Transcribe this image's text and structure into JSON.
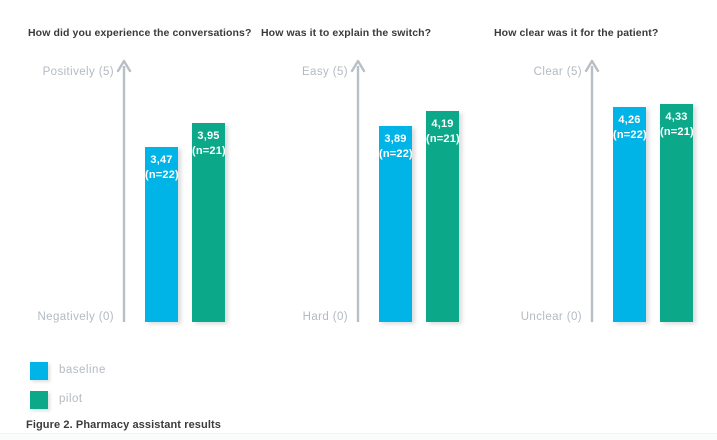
{
  "chart_data": {
    "type": "bar",
    "categories": [
      "How did you experience the conversations?",
      "How was it to explain the switch?",
      "How clear was it for the patient?"
    ],
    "series": [
      {
        "name": "baseline",
        "values": [
          3.47,
          3.89,
          4.26
        ],
        "n": [
          22,
          22,
          22
        ],
        "color": "#00b4e8"
      },
      {
        "name": "pilot",
        "values": [
          3.95,
          4.19,
          4.33
        ],
        "n": [
          21,
          21,
          21
        ],
        "color": "#0ba98a"
      }
    ],
    "ylim": [
      0,
      5
    ],
    "grid": false,
    "legend_position": "bottom-left",
    "caption": "Figure 2. Pharmacy assistant results",
    "panels": [
      {
        "question": "How did you experience the conversations?",
        "axis_top_label": "Positively (5)",
        "axis_bottom_label": "Negatively (0)",
        "bars": [
          {
            "series": "baseline",
            "value": 3.47,
            "value_label": "3,47",
            "n_label": "(n=22)"
          },
          {
            "series": "pilot",
            "value": 3.95,
            "value_label": "3,95",
            "n_label": "(n=21)"
          }
        ]
      },
      {
        "question": "How was it to explain the switch?",
        "axis_top_label": "Easy (5)",
        "axis_bottom_label": "Hard (0)",
        "bars": [
          {
            "series": "baseline",
            "value": 3.89,
            "value_label": "3,89",
            "n_label": "(n=22)"
          },
          {
            "series": "pilot",
            "value": 4.19,
            "value_label": "4,19",
            "n_label": "(n=21)"
          }
        ]
      },
      {
        "question": "How clear was it for the patient?",
        "axis_top_label": "Clear (5)",
        "axis_bottom_label": "Unclear (0)",
        "bars": [
          {
            "series": "baseline",
            "value": 4.26,
            "value_label": "4,26",
            "n_label": "(n=22)"
          },
          {
            "series": "pilot",
            "value": 4.33,
            "value_label": "4,33",
            "n_label": "(n=21)"
          }
        ]
      }
    ],
    "colors": {
      "axis": "#b9bfc6",
      "muted_label": "#b3bac3",
      "title_text": "#3a3a3a",
      "bar_text": "#ffffff"
    }
  },
  "legend": {
    "items": [
      {
        "label": "baseline",
        "color": "#00b4e8"
      },
      {
        "label": "pilot",
        "color": "#0ba98a"
      }
    ]
  },
  "caption": "Figure 2. Pharmacy assistant results"
}
